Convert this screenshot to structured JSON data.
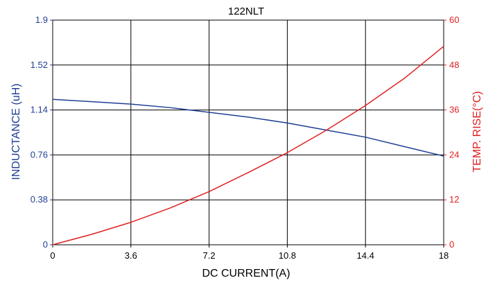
{
  "chart_data": {
    "type": "line",
    "title": "122NLT",
    "xlabel": "DC CURRENT(A)",
    "ylabel_left": "INDUCTANCE (uH)",
    "ylabel_right": "TEMP. RISE(°C)",
    "xlim": [
      0,
      18
    ],
    "ylim_left": [
      0,
      1.9
    ],
    "ylim_right": [
      0,
      60
    ],
    "x_ticks": [
      "0",
      "3.6",
      "7.2",
      "10.8",
      "14.4",
      "18"
    ],
    "y_left_ticks": [
      "0",
      "0.38",
      "0.76",
      "1.14",
      "1.52",
      "1.9"
    ],
    "y_right_ticks": [
      "0",
      "12",
      "24",
      "36",
      "48",
      "60"
    ],
    "grid": true,
    "colors": {
      "inductance": "#1f3f94",
      "temperature": "#e02020",
      "grid": "#000000",
      "text": "#000000"
    },
    "series": [
      {
        "axis": "left",
        "x": [
          0,
          1.8,
          3.6,
          5.4,
          7.2,
          9,
          10.8,
          12.6,
          14.4,
          16.2,
          18
        ],
        "values": [
          1.23,
          1.21,
          1.19,
          1.16,
          1.12,
          1.08,
          1.03,
          0.97,
          0.91,
          0.83,
          0.75
        ]
      },
      {
        "axis": "right",
        "x": [
          0,
          1.8,
          3.6,
          5.4,
          7.2,
          9,
          10.8,
          12.6,
          14.4,
          16.2,
          18
        ],
        "values": [
          0,
          2.8,
          6.0,
          9.8,
          14.2,
          19.3,
          24.6,
          30.6,
          37.2,
          44.5,
          53.0
        ]
      }
    ]
  }
}
